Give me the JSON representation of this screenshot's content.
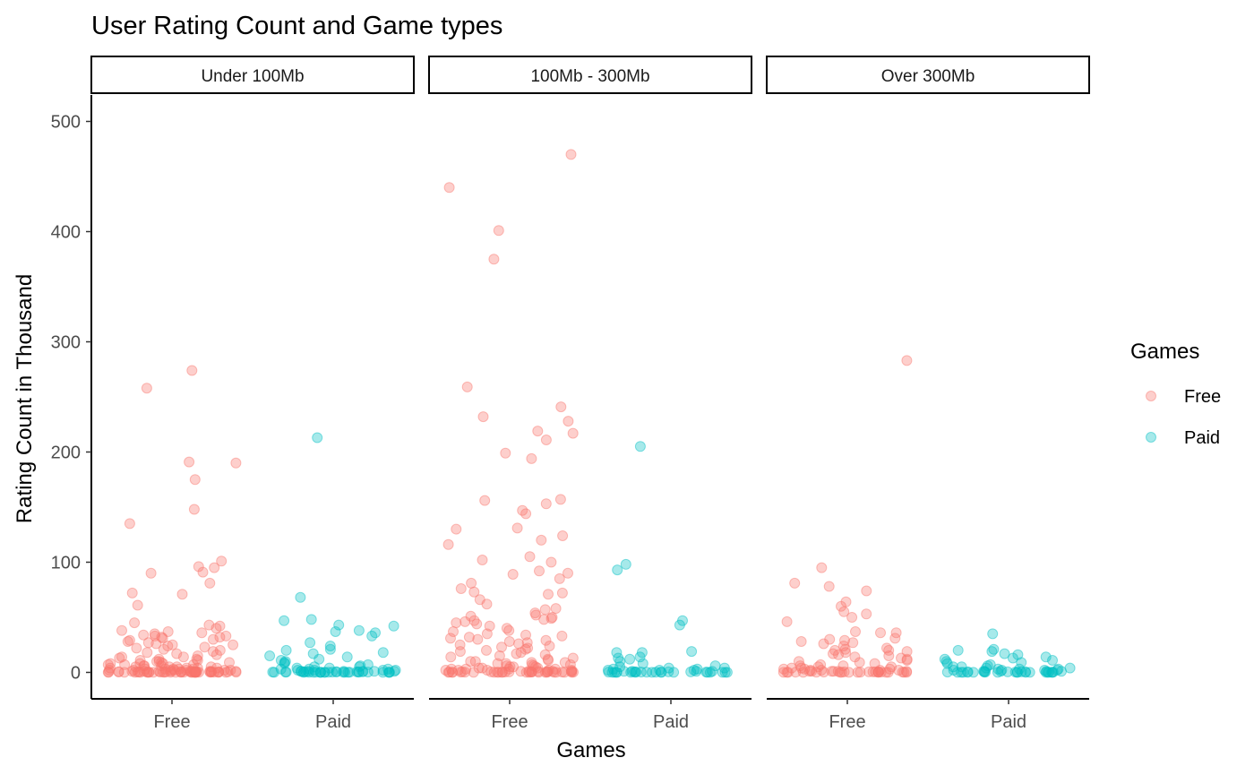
{
  "chart_data": {
    "type": "scatter",
    "title": "User Rating Count and Game types",
    "xlabel": "Games",
    "ylabel": "Rating Count in Thousand",
    "ylim": [
      -24,
      524
    ],
    "yticks": [
      0,
      100,
      200,
      300,
      400,
      500
    ],
    "categories": [
      "Free",
      "Paid"
    ],
    "grid": false,
    "legend": {
      "title": "Games",
      "position": "right",
      "entries": [
        {
          "label": "Free",
          "color": "#F8766D"
        },
        {
          "label": "Paid",
          "color": "#00BFC4"
        }
      ]
    },
    "panels": [
      {
        "label": "Under 100Mb",
        "series": [
          {
            "name": "Free",
            "x": "Free",
            "values": [
              274,
              258,
              191,
              190,
              175,
              148,
              135,
              101,
              96,
              95,
              91,
              90,
              81,
              72,
              71,
              61,
              45,
              43,
              42,
              40,
              38,
              37,
              36,
              35,
              34,
              33,
              33,
              32,
              32,
              31,
              30,
              29,
              28,
              27,
              26,
              25,
              25,
              24,
              23,
              22,
              21,
              20,
              19,
              18,
              17,
              16,
              15,
              14,
              14,
              13,
              12,
              12,
              11,
              11,
              10,
              10,
              9,
              9,
              8,
              8,
              8,
              7,
              7,
              7,
              6,
              6,
              6,
              5,
              5,
              5,
              5,
              4,
              4,
              4,
              4,
              3,
              3,
              3,
              3,
              3,
              2,
              2,
              2,
              2,
              2,
              2,
              2,
              1,
              1,
              1,
              1,
              1,
              1,
              1,
              1,
              1,
              1,
              0.5,
              0.5,
              0.5,
              0.5,
              0.5,
              0.5,
              0.5,
              0.5,
              0.5,
              0.5,
              0.3,
              0.3,
              0.3,
              0.3,
              0.3,
              0.3,
              0.3,
              0.3,
              0.2,
              0.2,
              0.2,
              0.2,
              0.2,
              0.2,
              0.1,
              0.1,
              0.1,
              0.1,
              0.1,
              0.1,
              0.1,
              0.1,
              0.1,
              0.1,
              0.1,
              0.1,
              0.1,
              0.1,
              0.1,
              0.1,
              0.1,
              0.1,
              0.1,
              0.1
            ]
          },
          {
            "name": "Paid",
            "x": "Paid",
            "values": [
              213,
              68,
              48,
              47,
              43,
              42,
              38,
              37,
              36,
              33,
              27,
              24,
              21,
              20,
              18,
              17,
              15,
              14,
              12,
              11,
              10,
              9,
              8,
              7,
              6,
              5,
              5,
              4,
              4,
              3,
              3,
              3,
              2,
              2,
              2,
              2,
              1,
              1,
              1,
              1,
              1,
              1,
              1,
              0.5,
              0.5,
              0.5,
              0.5,
              0.5,
              0.5,
              0.5,
              0.3,
              0.3,
              0.3,
              0.3,
              0.3,
              0.2,
              0.2,
              0.2,
              0.2,
              0.1,
              0.1,
              0.1,
              0.1,
              0.1,
              0.1,
              0.1,
              0.1,
              0.1,
              0.1,
              0.1,
              0.1,
              0.1,
              0.1,
              0.1,
              0.1
            ]
          }
        ]
      },
      {
        "label": "100Mb - 300Mb",
        "series": [
          {
            "name": "Free",
            "x": "Free",
            "values": [
              470,
              440,
              401,
              375,
              259,
              241,
              232,
              228,
              219,
              217,
              211,
              199,
              194,
              157,
              156,
              153,
              147,
              144,
              131,
              130,
              124,
              120,
              116,
              105,
              102,
              100,
              92,
              90,
              89,
              85,
              81,
              76,
              73,
              72,
              71,
              66,
              62,
              58,
              57,
              54,
              52,
              51,
              50,
              49,
              48,
              47,
              46,
              45,
              44,
              42,
              40,
              38,
              37,
              35,
              34,
              33,
              32,
              31,
              30,
              29,
              28,
              27,
              26,
              25,
              24,
              23,
              22,
              21,
              20,
              19,
              18,
              17,
              16,
              15,
              14,
              13,
              12,
              11,
              10,
              10,
              9,
              9,
              8,
              8,
              7,
              7,
              6,
              6,
              5,
              5,
              5,
              4,
              4,
              4,
              3,
              3,
              3,
              3,
              2,
              2,
              2,
              2,
              2,
              1,
              1,
              1,
              1,
              1,
              1,
              1,
              0.5,
              0.5,
              0.5,
              0.5,
              0.5,
              0.5,
              0.3,
              0.3,
              0.3,
              0.3,
              0.3,
              0.2,
              0.2,
              0.2,
              0.2,
              0.1,
              0.1,
              0.1,
              0.1,
              0.1,
              0.1,
              0.1,
              0.1,
              0.1,
              0.1,
              0.1,
              0.1,
              0.1,
              0.1,
              0.1,
              0.1
            ]
          },
          {
            "name": "Paid",
            "x": "Paid",
            "values": [
              205,
              98,
              93,
              47,
              43,
              19,
              18,
              18,
              14,
              13,
              12,
              10,
              8,
              6,
              5,
              4,
              4,
              3,
              3,
              2,
              2,
              2,
              1,
              1,
              1,
              1,
              0.5,
              0.5,
              0.5,
              0.5,
              0.3,
              0.3,
              0.3,
              0.2,
              0.2,
              0.2,
              0.1,
              0.1,
              0.1,
              0.1,
              0.1,
              0.1,
              0.1,
              0.1,
              0.1,
              0.1,
              0.1,
              0.1,
              0.1,
              0.1
            ]
          }
        ]
      },
      {
        "label": "Over 300Mb",
        "series": [
          {
            "name": "Free",
            "x": "Free",
            "values": [
              283,
              95,
              81,
              78,
              74,
              64,
              60,
              55,
              53,
              50,
              46,
              37,
              36,
              36,
              31,
              30,
              29,
              28,
              27,
              26,
              24,
              22,
              21,
              20,
              20,
              19,
              18,
              17,
              16,
              15,
              14,
              13,
              12,
              11,
              10,
              9,
              8,
              7,
              6,
              6,
              5,
              5,
              4,
              4,
              3,
              3,
              3,
              2,
              2,
              2,
              2,
              1,
              1,
              1,
              1,
              1,
              1,
              0.5,
              0.5,
              0.5,
              0.5,
              0.5,
              0.3,
              0.3,
              0.3,
              0.3,
              0.2,
              0.2,
              0.2,
              0.1,
              0.1,
              0.1,
              0.1,
              0.1,
              0.1,
              0.1,
              0.1,
              0.1,
              0.1,
              0.1,
              0.1,
              0.1
            ]
          },
          {
            "name": "Paid",
            "x": "Paid",
            "values": [
              35,
              21,
              20,
              19,
              17,
              16,
              14,
              13,
              12,
              11,
              10,
              9,
              8,
              7,
              6,
              5,
              5,
              4,
              4,
              3,
              3,
              3,
              2,
              2,
              2,
              2,
              1,
              1,
              1,
              1,
              1,
              0.5,
              0.5,
              0.5,
              0.5,
              0.3,
              0.3,
              0.3,
              0.2,
              0.2,
              0.1,
              0.1,
              0.1,
              0.1,
              0.1,
              0.1,
              0.1,
              0.1,
              0.1,
              0.1,
              0.1,
              0.1,
              0.1,
              0.1,
              0.1
            ]
          }
        ]
      }
    ]
  }
}
